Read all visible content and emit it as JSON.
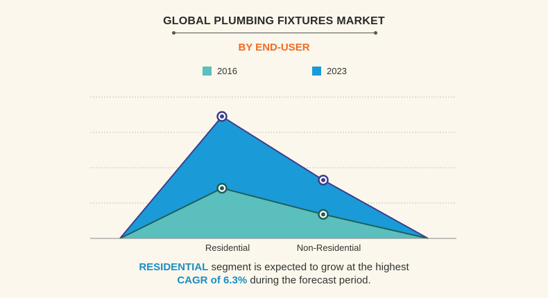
{
  "header": {
    "title": "GLOBAL PLUMBING FIXTURES MARKET",
    "subtitle": "BY END-USER"
  },
  "caption": {
    "line1_highlight": "RESIDENTIAL",
    "line1_rest": " segment is expected to grow at the highest",
    "line2_highlight": "CAGR of 6.3%",
    "line2_rest": " during the forecast period."
  },
  "colors": {
    "series_2016": "#5bbfbe",
    "series_2023": "#1a9bd8",
    "outline_2023": "#3b3f8f",
    "outline_2016": "#1f5f57"
  },
  "chart_data": {
    "type": "area",
    "categories": [
      "",
      "Residential",
      "Non-Residential",
      ""
    ],
    "series": [
      {
        "name": "2016",
        "values": [
          0,
          1.42,
          0.68,
          0
        ]
      },
      {
        "name": "2023",
        "values": [
          0,
          3.45,
          1.65,
          0
        ]
      }
    ],
    "ylim": [
      0,
      4
    ],
    "grid": true,
    "legend": "top-center"
  }
}
